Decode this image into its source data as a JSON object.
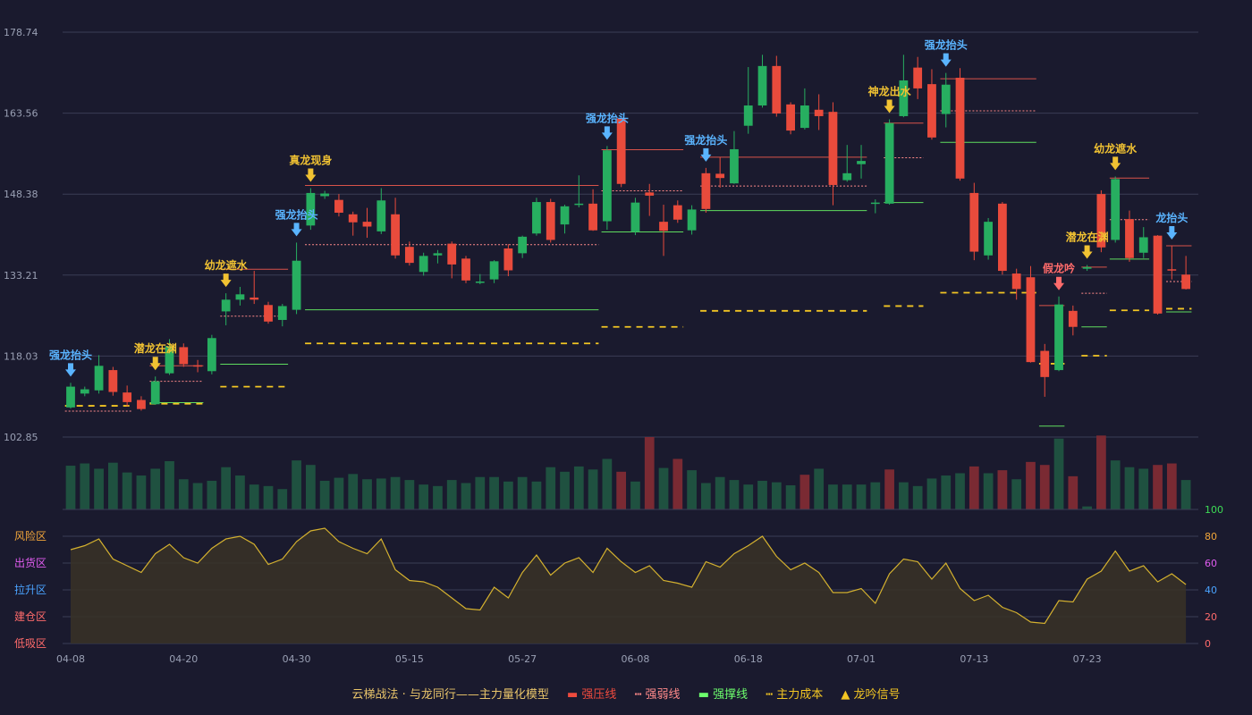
{
  "chart_data": {
    "type": "candlestick",
    "price_axis": {
      "ticks": [
        178.74,
        163.56,
        148.38,
        133.21,
        118.03,
        102.85
      ],
      "range": [
        102.85,
        178.74
      ]
    },
    "x_ticks": [
      "04-08",
      "04-20",
      "04-30",
      "05-15",
      "05-27",
      "06-08",
      "06-18",
      "07-01",
      "07-13",
      "07-23"
    ],
    "x_tick_index": [
      0,
      8,
      16,
      24,
      32,
      40,
      48,
      56,
      64,
      72
    ],
    "candles": [
      [
        108.4,
        112.3,
        108.2,
        113.0,
        "down"
      ],
      [
        111.8,
        111.0,
        110.5,
        112.3,
        "down"
      ],
      [
        111.6,
        116.2,
        111.0,
        118.2,
        "down"
      ],
      [
        115.4,
        111.3,
        110.6,
        116.0,
        "up"
      ],
      [
        111.2,
        109.4,
        108.6,
        112.5,
        "up"
      ],
      [
        109.8,
        108.1,
        107.8,
        110.5,
        "up"
      ],
      [
        109.0,
        113.3,
        108.9,
        114.2,
        "down"
      ],
      [
        114.8,
        119.9,
        114.5,
        121.2,
        "down"
      ],
      [
        119.7,
        116.5,
        116.0,
        120.4,
        "up"
      ],
      [
        116.3,
        116.2,
        115.0,
        117.3,
        "up"
      ],
      [
        115.2,
        121.4,
        114.6,
        122.0,
        "down"
      ],
      [
        126.4,
        128.6,
        123.8,
        129.8,
        "down"
      ],
      [
        128.6,
        129.6,
        127.5,
        131.0,
        "down"
      ],
      [
        129.0,
        128.6,
        127.8,
        134.0,
        "up"
      ],
      [
        127.6,
        124.5,
        124.1,
        128.2,
        "up"
      ],
      [
        124.8,
        127.4,
        123.6,
        127.8,
        "down"
      ],
      [
        126.7,
        135.9,
        125.9,
        139.3,
        "down"
      ],
      [
        142.5,
        148.6,
        141.7,
        149.5,
        "down"
      ],
      [
        148.5,
        148.0,
        147.5,
        149.0,
        "down"
      ],
      [
        147.3,
        144.9,
        144.2,
        148.4,
        "up"
      ],
      [
        144.6,
        143.1,
        140.6,
        145.1,
        "up"
      ],
      [
        143.2,
        142.3,
        140.2,
        145.8,
        "up"
      ],
      [
        141.4,
        147.2,
        140.9,
        149.5,
        "down"
      ],
      [
        144.6,
        136.9,
        136.3,
        147.7,
        "up"
      ],
      [
        138.5,
        135.5,
        135.0,
        139.5,
        "up"
      ],
      [
        136.8,
        133.8,
        133.1,
        137.4,
        "down"
      ],
      [
        136.9,
        137.3,
        135.4,
        137.9,
        "down"
      ],
      [
        139.1,
        135.2,
        132.6,
        139.5,
        "up"
      ],
      [
        136.3,
        132.2,
        131.7,
        136.8,
        "up"
      ],
      [
        131.9,
        132.0,
        131.5,
        133.4,
        "down"
      ],
      [
        132.4,
        135.8,
        131.7,
        136.0,
        "down"
      ],
      [
        138.2,
        134.1,
        133.0,
        139.0,
        "up"
      ],
      [
        137.3,
        140.4,
        136.4,
        140.6,
        "down"
      ],
      [
        141.0,
        146.9,
        140.6,
        147.7,
        "down"
      ],
      [
        146.9,
        139.8,
        139.3,
        147.5,
        "up"
      ],
      [
        142.7,
        146.1,
        141.0,
        146.4,
        "down"
      ],
      [
        146.6,
        146.4,
        145.9,
        151.9,
        "down"
      ],
      [
        146.6,
        141.6,
        141.5,
        149.3,
        "up"
      ],
      [
        143.3,
        156.6,
        141.7,
        157.4,
        "down"
      ],
      [
        162.6,
        150.3,
        149.7,
        162.4,
        "up"
      ],
      [
        141.3,
        146.8,
        140.7,
        147.7,
        "down"
      ],
      [
        148.7,
        148.1,
        144.3,
        150.3,
        "up"
      ],
      [
        143.2,
        141.5,
        136.8,
        146.4,
        "up"
      ],
      [
        143.6,
        146.3,
        143.0,
        147.2,
        "up"
      ],
      [
        141.6,
        145.5,
        140.8,
        146.3,
        "down"
      ],
      [
        145.6,
        152.3,
        144.9,
        153.3,
        "up"
      ],
      [
        152.2,
        151.4,
        149.6,
        155.3,
        "up"
      ],
      [
        150.4,
        156.8,
        150.3,
        160.2,
        "down"
      ],
      [
        161.2,
        165.0,
        159.7,
        172.2,
        "down"
      ],
      [
        165.0,
        172.4,
        164.6,
        174.5,
        "down"
      ],
      [
        172.4,
        163.5,
        162.9,
        174.3,
        "up"
      ],
      [
        165.2,
        160.3,
        159.6,
        165.6,
        "up"
      ],
      [
        160.8,
        165.0,
        160.5,
        168.2,
        "down"
      ],
      [
        164.2,
        163.0,
        160.4,
        167.1,
        "up"
      ],
      [
        163.8,
        150.1,
        146.3,
        165.6,
        "up"
      ],
      [
        151.0,
        152.3,
        150.7,
        157.6,
        "down"
      ],
      [
        154.0,
        154.6,
        151.3,
        157.6,
        "down"
      ],
      [
        146.6,
        146.8,
        144.8,
        147.4,
        "down"
      ],
      [
        146.6,
        161.7,
        146.4,
        162.4,
        "down"
      ],
      [
        163.0,
        169.7,
        162.8,
        174.5,
        "down"
      ],
      [
        172.1,
        168.2,
        166.2,
        174.1,
        "up"
      ],
      [
        169.0,
        159.0,
        158.6,
        171.8,
        "up"
      ],
      [
        163.4,
        168.9,
        160.9,
        171.1,
        "down"
      ],
      [
        170.2,
        151.3,
        150.9,
        172.0,
        "up"
      ],
      [
        148.6,
        137.6,
        136.0,
        150.5,
        "up"
      ],
      [
        136.9,
        143.2,
        136.1,
        143.9,
        "down"
      ],
      [
        146.6,
        134.0,
        133.3,
        146.9,
        "up"
      ],
      [
        133.5,
        130.6,
        128.6,
        134.4,
        "up"
      ],
      [
        132.8,
        116.9,
        116.8,
        134.9,
        "up"
      ],
      [
        119.0,
        114.1,
        110.4,
        120.3,
        "up"
      ],
      [
        115.4,
        127.7,
        115.2,
        129.2,
        "down"
      ],
      [
        126.5,
        123.5,
        121.9,
        127.5,
        "up"
      ],
      [
        134.4,
        134.7,
        134.0,
        135.1,
        "down"
      ],
      [
        138.4,
        148.4,
        137.5,
        149.1,
        "up"
      ],
      [
        139.8,
        151.2,
        139.3,
        151.7,
        "down"
      ],
      [
        143.7,
        136.4,
        135.7,
        145.3,
        "up"
      ],
      [
        137.4,
        140.3,
        136.4,
        142.2,
        "down"
      ],
      [
        140.6,
        126.0,
        125.8,
        140.7,
        "up"
      ],
      [
        134.3,
        134.2,
        132.4,
        138.7,
        "up"
      ],
      [
        133.3,
        130.6,
        130.5,
        136.8,
        "up"
      ]
    ],
    "volume": [
      58,
      61,
      54,
      62,
      49,
      45,
      54,
      64,
      40,
      35,
      38,
      56,
      45,
      33,
      31,
      27,
      65,
      59,
      38,
      42,
      47,
      40,
      41,
      43,
      39,
      33,
      31,
      39,
      35,
      43,
      43,
      37,
      43,
      37,
      56,
      50,
      57,
      53,
      67,
      50,
      37,
      96,
      55,
      67,
      52,
      35,
      43,
      39,
      33,
      38,
      36,
      32,
      46,
      54,
      33,
      33,
      33,
      36,
      53,
      36,
      31,
      41,
      45,
      48,
      57,
      48,
      52,
      40,
      63,
      59,
      94,
      44,
      4,
      98,
      65,
      56,
      54,
      59,
      61,
      39
    ],
    "vol_up": [
      false,
      false,
      false,
      false,
      false,
      false,
      false,
      false,
      false,
      false,
      false,
      false,
      false,
      false,
      false,
      false,
      false,
      false,
      false,
      false,
      false,
      false,
      false,
      false,
      false,
      false,
      false,
      false,
      false,
      false,
      false,
      false,
      false,
      false,
      false,
      false,
      false,
      false,
      false,
      true,
      false,
      true,
      false,
      true,
      false,
      false,
      false,
      false,
      false,
      false,
      false,
      false,
      true,
      false,
      false,
      false,
      false,
      false,
      true,
      false,
      false,
      false,
      false,
      false,
      true,
      false,
      true,
      false,
      true,
      true,
      false,
      true,
      false,
      true,
      false,
      false,
      false,
      true,
      true,
      false
    ],
    "indicator": {
      "axis_ticks": [
        100,
        80,
        60,
        40,
        20,
        0
      ],
      "zones": [
        "风险区",
        "出货区",
        "拉升区",
        "建仓区",
        "低吸区"
      ],
      "values": [
        70,
        73,
        78,
        63,
        58,
        53,
        67,
        74,
        64,
        60,
        71,
        78,
        80,
        74,
        59,
        63,
        76,
        84,
        86,
        76,
        71,
        67,
        78,
        55,
        47,
        46,
        42,
        34,
        26,
        25,
        42,
        34,
        53,
        66,
        51,
        60,
        64,
        53,
        71,
        61,
        53,
        58,
        47,
        45,
        42,
        61,
        57,
        67,
        73,
        80,
        65,
        55,
        60,
        53,
        38,
        38,
        41,
        30,
        52,
        63,
        61,
        48,
        60,
        41,
        32,
        36,
        27,
        23,
        16,
        15,
        32,
        31,
        48,
        54,
        69,
        54,
        58,
        46,
        52,
        44
      ]
    },
    "signals": [
      {
        "label": "强龙抬头",
        "i": 0,
        "color": "blue"
      },
      {
        "label": "潜龙在渊",
        "i": 6,
        "color": "gold"
      },
      {
        "label": "幼龙遮水",
        "i": 11,
        "color": "gold"
      },
      {
        "label": "强龙抬头",
        "i": 16,
        "color": "blue"
      },
      {
        "label": "真龙现身",
        "i": 17,
        "color": "gold"
      },
      {
        "label": "强龙抬头",
        "i": 38,
        "color": "blue"
      },
      {
        "label": "强龙抬头",
        "i": 45,
        "color": "blue"
      },
      {
        "label": "神龙出水",
        "i": 58,
        "color": "gold"
      },
      {
        "label": "强龙抬头",
        "i": 62,
        "color": "blue"
      },
      {
        "label": "假龙吟",
        "i": 70,
        "color": "red"
      },
      {
        "label": "潜龙在渊",
        "i": 72,
        "color": "gold"
      },
      {
        "label": "幼龙遮水",
        "i": 74,
        "color": "gold"
      },
      {
        "label": "龙抬头",
        "i": 78,
        "color": "blue"
      }
    ],
    "levels": [
      {
        "kind": "pressure",
        "from": 6,
        "to": 9,
        "v": 116.2
      },
      {
        "kind": "pressure",
        "from": 11,
        "to": 15,
        "v": 134.3
      },
      {
        "kind": "pressure",
        "from": 17,
        "to": 37,
        "v": 150.0
      },
      {
        "kind": "pressure",
        "from": 38,
        "to": 43,
        "v": 156.7
      },
      {
        "kind": "pressure",
        "from": 45,
        "to": 56,
        "v": 155.3
      },
      {
        "kind": "pressure",
        "from": 58,
        "to": 60,
        "v": 161.7
      },
      {
        "kind": "pressure",
        "from": 62,
        "to": 68,
        "v": 170.0
      },
      {
        "kind": "pressure",
        "from": 72,
        "to": 73,
        "v": 134.7
      },
      {
        "kind": "pressure",
        "from": 74,
        "to": 76,
        "v": 151.4
      },
      {
        "kind": "pressure",
        "from": 78,
        "to": 79,
        "v": 138.7
      },
      {
        "kind": "pressure",
        "from": 69,
        "to": 70,
        "v": 127.5
      },
      {
        "kind": "weak",
        "from": 0,
        "to": 4,
        "v": 107.7
      },
      {
        "kind": "weak",
        "from": 6,
        "to": 9,
        "v": 113.3
      },
      {
        "kind": "weak",
        "from": 11,
        "to": 15,
        "v": 125.5
      },
      {
        "kind": "weak",
        "from": 17,
        "to": 37,
        "v": 138.9
      },
      {
        "kind": "weak",
        "from": 38,
        "to": 43,
        "v": 149.0
      },
      {
        "kind": "weak",
        "from": 45,
        "to": 56,
        "v": 149.9
      },
      {
        "kind": "weak",
        "from": 58,
        "to": 60,
        "v": 155.2
      },
      {
        "kind": "weak",
        "from": 62,
        "to": 68,
        "v": 164.0
      },
      {
        "kind": "weak",
        "from": 72,
        "to": 73,
        "v": 129.8
      },
      {
        "kind": "weak",
        "from": 74,
        "to": 76,
        "v": 143.6
      },
      {
        "kind": "weak",
        "from": 78,
        "to": 79,
        "v": 132.0
      },
      {
        "kind": "support",
        "from": 6,
        "to": 9,
        "v": 109.3
      },
      {
        "kind": "support",
        "from": 11,
        "to": 15,
        "v": 116.5
      },
      {
        "kind": "support",
        "from": 17,
        "to": 37,
        "v": 126.7
      },
      {
        "kind": "support",
        "from": 38,
        "to": 43,
        "v": 141.3
      },
      {
        "kind": "support",
        "from": 45,
        "to": 56,
        "v": 145.3
      },
      {
        "kind": "support",
        "from": 58,
        "to": 60,
        "v": 146.8
      },
      {
        "kind": "support",
        "from": 62,
        "to": 68,
        "v": 158.1
      },
      {
        "kind": "support",
        "from": 69,
        "to": 70,
        "v": 104.9
      },
      {
        "kind": "support",
        "from": 72,
        "to": 73,
        "v": 123.5
      },
      {
        "kind": "support",
        "from": 74,
        "to": 76,
        "v": 136.2
      },
      {
        "kind": "support",
        "from": 78,
        "to": 79,
        "v": 126.3
      },
      {
        "kind": "cost",
        "from": 0,
        "to": 4,
        "v": 108.7
      },
      {
        "kind": "cost",
        "from": 6,
        "to": 9,
        "v": 109.1
      },
      {
        "kind": "cost",
        "from": 11,
        "to": 15,
        "v": 112.3
      },
      {
        "kind": "cost",
        "from": 17,
        "to": 37,
        "v": 120.4
      },
      {
        "kind": "cost",
        "from": 38,
        "to": 43,
        "v": 123.5
      },
      {
        "kind": "cost",
        "from": 45,
        "to": 56,
        "v": 126.5
      },
      {
        "kind": "cost",
        "from": 58,
        "to": 60,
        "v": 127.4
      },
      {
        "kind": "cost",
        "from": 62,
        "to": 68,
        "v": 129.9
      },
      {
        "kind": "cost",
        "from": 69,
        "to": 70,
        "v": 116.6
      },
      {
        "kind": "cost",
        "from": 72,
        "to": 73,
        "v": 118.1
      },
      {
        "kind": "cost",
        "from": 74,
        "to": 76,
        "v": 126.6
      },
      {
        "kind": "cost",
        "from": 78,
        "to": 79,
        "v": 126.9
      }
    ]
  },
  "legend": {
    "title": "云梯战法 · 与龙同行——主力量化模型",
    "items": [
      {
        "label": "强压线",
        "color": "#ef4b3e"
      },
      {
        "label": "强弱线",
        "color": "#ff8a8a"
      },
      {
        "label": "强撑线",
        "color": "#6dff6d"
      },
      {
        "label": "主力成本",
        "color": "#f3c623"
      },
      {
        "label": "龙吟信号",
        "color": "#f3c623"
      }
    ]
  },
  "colors": {
    "up": "#e94b3c",
    "down": "#27ae60",
    "vol_up": "#7a2a33",
    "vol_down": "#1f5140",
    "grid": "#3a3d55",
    "signal_blue": "#5ab4ff",
    "signal_gold": "#f1c232",
    "signal_red": "#ff6b6b",
    "indicator_line": "#d4b12f"
  }
}
